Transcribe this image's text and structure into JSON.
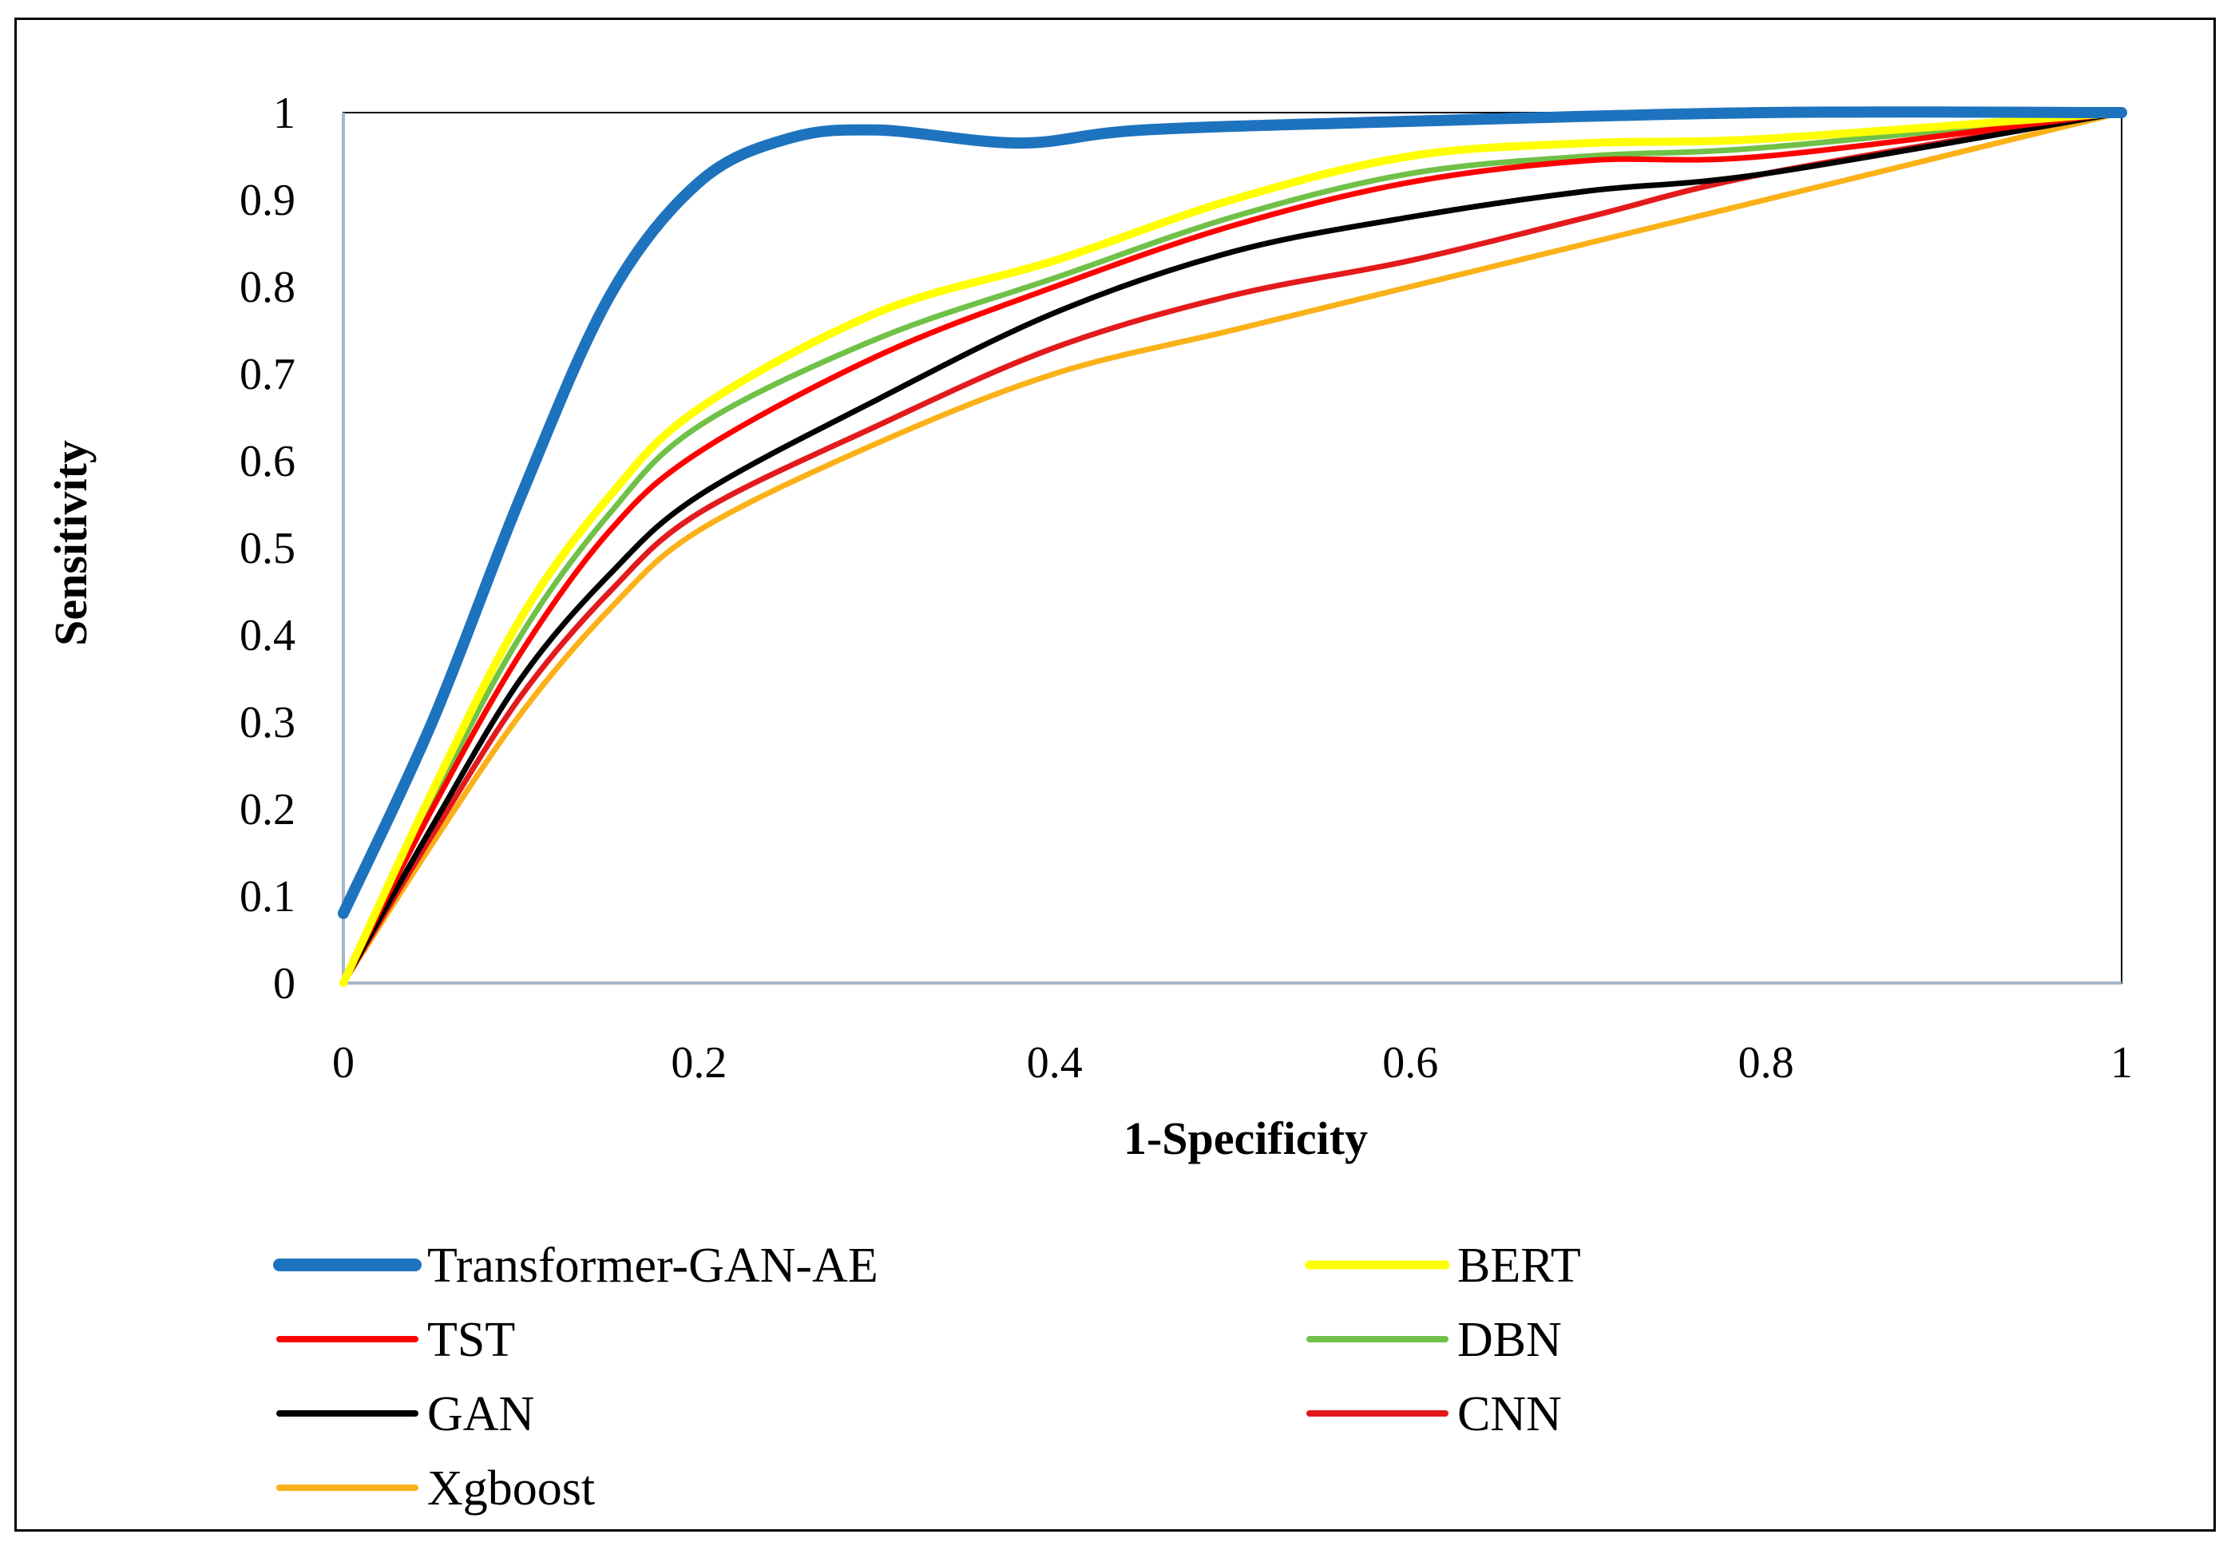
{
  "chart_data": {
    "type": "line",
    "title": "",
    "xlabel": "1-Specificity",
    "ylabel": "Sensitivity",
    "xlim": [
      0,
      1
    ],
    "ylim": [
      0,
      1
    ],
    "x_ticks": [
      "0",
      "0.2",
      "0.4",
      "0.6",
      "0.8",
      "1"
    ],
    "y_ticks": [
      "0",
      "0.1",
      "0.2",
      "0.3",
      "0.4",
      "0.5",
      "0.6",
      "0.7",
      "0.8",
      "0.9",
      "1"
    ],
    "grid": false,
    "legend_position": "bottom",
    "series": [
      {
        "name": "Transformer-GAN-AE",
        "color": "#1e73be",
        "emphasis": "thick",
        "points": [
          [
            0,
            0.08
          ],
          [
            0.05,
            0.3
          ],
          [
            0.1,
            0.56
          ],
          [
            0.15,
            0.79
          ],
          [
            0.2,
            0.92
          ],
          [
            0.25,
            0.97
          ],
          [
            0.3,
            0.98
          ],
          [
            0.38,
            0.965
          ],
          [
            0.45,
            0.98
          ],
          [
            0.6,
            0.99
          ],
          [
            0.8,
            1.0
          ],
          [
            1.0,
            1.0
          ]
        ]
      },
      {
        "name": "BERT",
        "color": "#ffff00",
        "emphasis": "medium",
        "points": [
          [
            0,
            0
          ],
          [
            0.05,
            0.22
          ],
          [
            0.1,
            0.42
          ],
          [
            0.15,
            0.56
          ],
          [
            0.2,
            0.66
          ],
          [
            0.3,
            0.77
          ],
          [
            0.4,
            0.83
          ],
          [
            0.5,
            0.9
          ],
          [
            0.6,
            0.95
          ],
          [
            0.7,
            0.965
          ],
          [
            0.8,
            0.97
          ],
          [
            1.0,
            1.0
          ]
        ]
      },
      {
        "name": "TST",
        "color": "#ff0000",
        "emphasis": "medium",
        "points": [
          [
            0,
            0
          ],
          [
            0.05,
            0.2
          ],
          [
            0.1,
            0.38
          ],
          [
            0.15,
            0.52
          ],
          [
            0.2,
            0.61
          ],
          [
            0.3,
            0.72
          ],
          [
            0.4,
            0.8
          ],
          [
            0.5,
            0.87
          ],
          [
            0.6,
            0.92
          ],
          [
            0.7,
            0.945
          ],
          [
            0.8,
            0.95
          ],
          [
            1.0,
            1.0
          ]
        ]
      },
      {
        "name": "DBN",
        "color": "#70c147",
        "emphasis": "medium",
        "points": [
          [
            0,
            0
          ],
          [
            0.05,
            0.21
          ],
          [
            0.1,
            0.4
          ],
          [
            0.15,
            0.54
          ],
          [
            0.2,
            0.64
          ],
          [
            0.3,
            0.74
          ],
          [
            0.4,
            0.81
          ],
          [
            0.5,
            0.88
          ],
          [
            0.6,
            0.93
          ],
          [
            0.7,
            0.95
          ],
          [
            0.8,
            0.96
          ],
          [
            1.0,
            1.0
          ]
        ]
      },
      {
        "name": "GAN",
        "color": "#000000",
        "emphasis": "medium",
        "points": [
          [
            0,
            0
          ],
          [
            0.05,
            0.18
          ],
          [
            0.1,
            0.35
          ],
          [
            0.15,
            0.47
          ],
          [
            0.2,
            0.56
          ],
          [
            0.3,
            0.67
          ],
          [
            0.4,
            0.77
          ],
          [
            0.5,
            0.84
          ],
          [
            0.6,
            0.88
          ],
          [
            0.7,
            0.91
          ],
          [
            0.8,
            0.93
          ],
          [
            1.0,
            1.0
          ]
        ]
      },
      {
        "name": "CNN",
        "color": "#e31a1c",
        "emphasis": "medium",
        "points": [
          [
            0,
            0
          ],
          [
            0.05,
            0.17
          ],
          [
            0.1,
            0.33
          ],
          [
            0.15,
            0.45
          ],
          [
            0.2,
            0.54
          ],
          [
            0.3,
            0.64
          ],
          [
            0.4,
            0.73
          ],
          [
            0.5,
            0.79
          ],
          [
            0.6,
            0.83
          ],
          [
            0.7,
            0.88
          ],
          [
            0.8,
            0.93
          ],
          [
            1.0,
            1.0
          ]
        ]
      },
      {
        "name": "Xgboost",
        "color": "#fbb117",
        "emphasis": "medium",
        "points": [
          [
            0,
            0
          ],
          [
            0.05,
            0.16
          ],
          [
            0.1,
            0.31
          ],
          [
            0.15,
            0.43
          ],
          [
            0.2,
            0.52
          ],
          [
            0.3,
            0.62
          ],
          [
            0.4,
            0.7
          ],
          [
            0.5,
            0.75
          ],
          [
            0.6,
            0.8
          ],
          [
            0.7,
            0.85
          ],
          [
            0.8,
            0.9
          ],
          [
            1.0,
            1.0
          ]
        ]
      }
    ],
    "legend_order": [
      "Transformer-GAN-AE",
      "BERT",
      "TST",
      "DBN",
      "GAN",
      "CNN",
      "Xgboost"
    ]
  }
}
